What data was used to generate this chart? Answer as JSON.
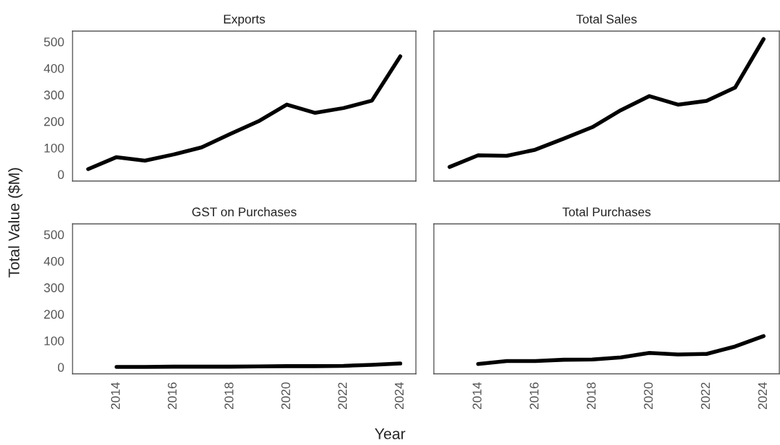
{
  "chart_data": [
    {
      "type": "line",
      "title": "Exports",
      "ylabel": "Total Value ($M)",
      "x": [
        2013,
        2014,
        2015,
        2016,
        2017,
        2018,
        2019,
        2020,
        2021,
        2022,
        2023,
        2024
      ],
      "series": [
        {
          "color": "#000000",
          "values": [
            20,
            65,
            52,
            75,
            102,
            152,
            200,
            263,
            232,
            250,
            278,
            445
          ]
        }
      ],
      "xlim": [
        2012.45,
        2024.55
      ],
      "xticks": [
        2014,
        2016,
        2018,
        2020,
        2022,
        2024
      ],
      "ylim": [
        -25,
        540
      ],
      "yticks": [
        0,
        100,
        200,
        300,
        400,
        500
      ],
      "tick_labels": "y",
      "grid": false,
      "legend": false
    },
    {
      "type": "line",
      "title": "Total Sales",
      "x": [
        2013,
        2014,
        2015,
        2016,
        2017,
        2018,
        2019,
        2020,
        2021,
        2022,
        2023,
        2024
      ],
      "series": [
        {
          "color": "#000000",
          "values": [
            28,
            72,
            70,
            93,
            135,
            178,
            242,
            295,
            263,
            277,
            327,
            510
          ]
        }
      ],
      "xlim": [
        2012.45,
        2024.55
      ],
      "xticks": [
        2014,
        2016,
        2018,
        2020,
        2022,
        2024
      ],
      "ylim": [
        -25,
        540
      ],
      "yticks": [
        0,
        100,
        200,
        300,
        400,
        500
      ],
      "tick_labels": false,
      "grid": false,
      "legend": false
    },
    {
      "type": "line",
      "title": "GST on Purchases",
      "xlabel": "Year",
      "x": [
        2014,
        2015,
        2016,
        2017,
        2018,
        2019,
        2020,
        2021,
        2022,
        2023,
        2024
      ],
      "series": [
        {
          "color": "#000000",
          "values": [
            1,
            1,
            2,
            2,
            2,
            3,
            4,
            4,
            5,
            9,
            14
          ]
        }
      ],
      "xlim": [
        2012.45,
        2024.55
      ],
      "xticks": [
        2014,
        2016,
        2018,
        2020,
        2022,
        2024
      ],
      "ylim": [
        -25,
        540
      ],
      "yticks": [
        0,
        100,
        200,
        300,
        400,
        500
      ],
      "grid": false,
      "legend": false
    },
    {
      "type": "line",
      "title": "Total Purchases",
      "x": [
        2014,
        2015,
        2016,
        2017,
        2018,
        2019,
        2020,
        2021,
        2022,
        2023,
        2024
      ],
      "series": [
        {
          "color": "#000000",
          "values": [
            12,
            23,
            23,
            28,
            29,
            37,
            54,
            48,
            50,
            78,
            117
          ]
        }
      ],
      "xlim": [
        2012.45,
        2024.55
      ],
      "xticks": [
        2014,
        2016,
        2018,
        2020,
        2022,
        2024
      ],
      "ylim": [
        -25,
        540
      ],
      "yticks": [
        0,
        100,
        200,
        300,
        400,
        500
      ],
      "tick_labels": "x",
      "grid": false,
      "legend": false
    }
  ]
}
